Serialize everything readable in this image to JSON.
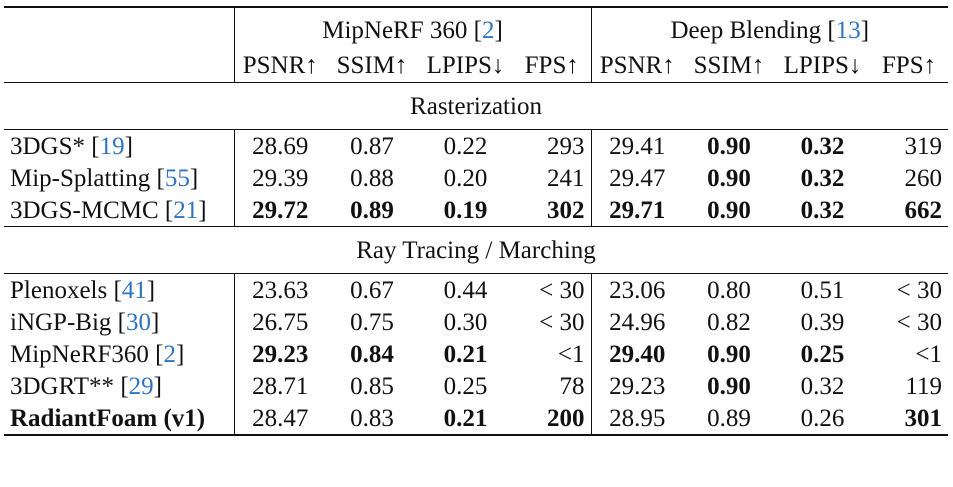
{
  "header": {
    "group1_name": "MipNeRF 360",
    "group1_cite": "2",
    "group2_name": "Deep Blending",
    "group2_cite": "13",
    "columns": [
      "PSNR↑",
      "SSIM↑",
      "LPIPS↓",
      "FPS↑",
      "PSNR↑",
      "SSIM↑",
      "LPIPS↓",
      "FPS↑"
    ]
  },
  "sections": [
    {
      "title": "Rasterization",
      "rows": [
        {
          "method": "3DGS*",
          "cite": "19",
          "method_bold": false,
          "values": [
            "28.69",
            "0.87",
            "0.22",
            "293",
            "29.41",
            "0.90",
            "0.32",
            "319"
          ],
          "bold": [
            false,
            false,
            false,
            false,
            false,
            true,
            true,
            false
          ]
        },
        {
          "method": "Mip-Splatting",
          "cite": "55",
          "method_bold": false,
          "values": [
            "29.39",
            "0.88",
            "0.20",
            "241",
            "29.47",
            "0.90",
            "0.32",
            "260"
          ],
          "bold": [
            false,
            false,
            false,
            false,
            false,
            true,
            true,
            false
          ]
        },
        {
          "method": "3DGS-MCMC",
          "cite": "21",
          "method_bold": false,
          "values": [
            "29.72",
            "0.89",
            "0.19",
            "302",
            "29.71",
            "0.90",
            "0.32",
            "662"
          ],
          "bold": [
            true,
            true,
            true,
            true,
            true,
            true,
            true,
            true
          ]
        }
      ]
    },
    {
      "title": "Ray Tracing / Marching",
      "rows": [
        {
          "method": "Plenoxels",
          "cite": "41",
          "method_bold": false,
          "values": [
            "23.63",
            "0.67",
            "0.44",
            "< 30",
            "23.06",
            "0.80",
            "0.51",
            "< 30"
          ],
          "bold": [
            false,
            false,
            false,
            false,
            false,
            false,
            false,
            false
          ]
        },
        {
          "method": "iNGP-Big",
          "cite": "30",
          "method_bold": false,
          "values": [
            "26.75",
            "0.75",
            "0.30",
            "< 30",
            "24.96",
            "0.82",
            "0.39",
            "< 30"
          ],
          "bold": [
            false,
            false,
            false,
            false,
            false,
            false,
            false,
            false
          ]
        },
        {
          "method": "MipNeRF360",
          "cite": "2",
          "method_bold": false,
          "values": [
            "29.23",
            "0.84",
            "0.21",
            "<1",
            "29.40",
            "0.90",
            "0.25",
            "<1"
          ],
          "bold": [
            true,
            true,
            true,
            false,
            true,
            true,
            true,
            false
          ]
        },
        {
          "method": "3DGRT**",
          "cite": "29",
          "method_bold": false,
          "values": [
            "28.71",
            "0.85",
            "0.25",
            "78",
            "29.23",
            "0.90",
            "0.32",
            "119"
          ],
          "bold": [
            false,
            false,
            false,
            false,
            false,
            true,
            false,
            false
          ]
        },
        {
          "method": "RadiantFoam (v1)",
          "cite": "",
          "method_bold": true,
          "values": [
            "28.47",
            "0.83",
            "0.21",
            "200",
            "28.95",
            "0.89",
            "0.26",
            "301"
          ],
          "bold": [
            false,
            false,
            true,
            true,
            false,
            false,
            false,
            true
          ]
        }
      ]
    }
  ]
}
